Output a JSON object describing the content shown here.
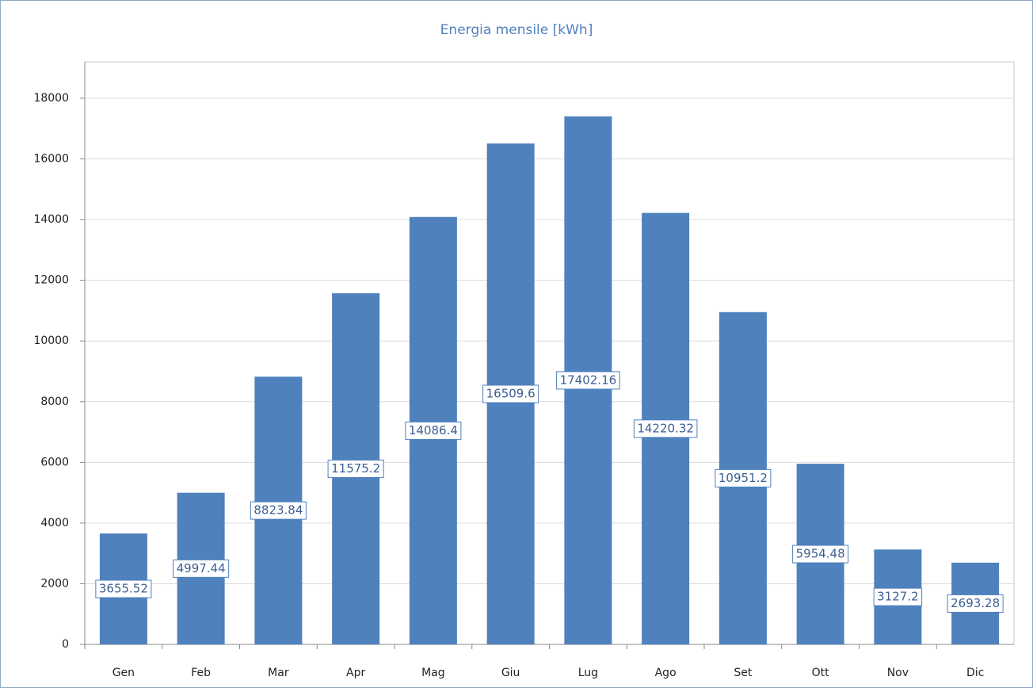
{
  "chart_data": {
    "type": "bar",
    "title": "Energia mensile [kWh]",
    "categories": [
      "Gen",
      "Feb",
      "Mar",
      "Apr",
      "Mag",
      "Giu",
      "Lug",
      "Ago",
      "Set",
      "Ott",
      "Nov",
      "Dic"
    ],
    "values": [
      3655.52,
      4997.44,
      8823.84,
      11575.2,
      14086.4,
      16509.6,
      17402.16,
      14220.32,
      10951.2,
      5954.48,
      3127.2,
      2693.28
    ],
    "color": "#4f81bd",
    "ylim": [
      0,
      19200
    ],
    "yticks": [
      0,
      2000,
      4000,
      6000,
      8000,
      10000,
      12000,
      14000,
      16000,
      18000
    ],
    "grid": true
  }
}
